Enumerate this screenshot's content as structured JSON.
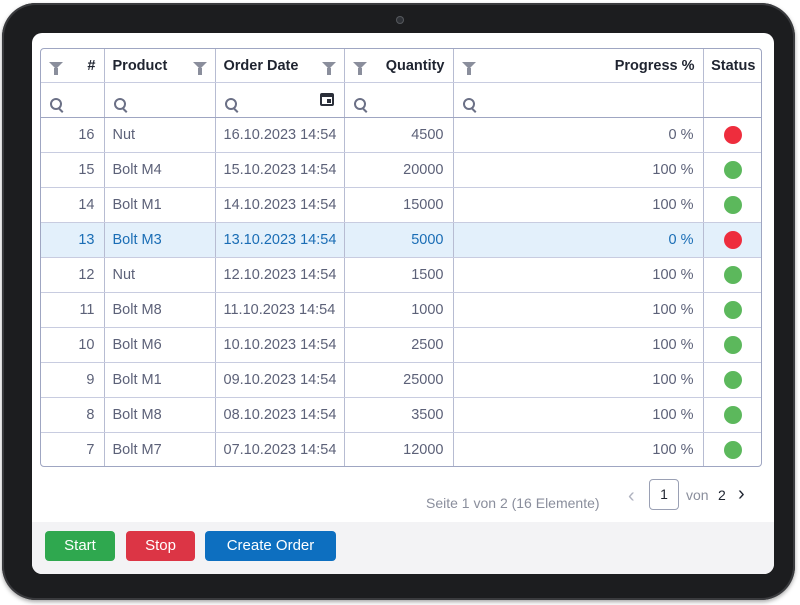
{
  "table": {
    "columns": [
      {
        "key": "id",
        "label": "#"
      },
      {
        "key": "product",
        "label": "Product"
      },
      {
        "key": "order_date",
        "label": "Order Date"
      },
      {
        "key": "quantity",
        "label": "Quantity"
      },
      {
        "key": "progress",
        "label": "Progress %"
      },
      {
        "key": "status",
        "label": "Status"
      }
    ],
    "rows": [
      {
        "id": "16",
        "product": "Nut",
        "order_date": "16.10.2023 14:54",
        "quantity": "4500",
        "progress": "0 %",
        "status": "red"
      },
      {
        "id": "15",
        "product": "Bolt M4",
        "order_date": "15.10.2023 14:54",
        "quantity": "20000",
        "progress": "100 %",
        "status": "green"
      },
      {
        "id": "14",
        "product": "Bolt M1",
        "order_date": "14.10.2023 14:54",
        "quantity": "15000",
        "progress": "100 %",
        "status": "green"
      },
      {
        "id": "13",
        "product": "Bolt M3",
        "order_date": "13.10.2023 14:54",
        "quantity": "5000",
        "progress": "0 %",
        "status": "red",
        "selected": true
      },
      {
        "id": "12",
        "product": "Nut",
        "order_date": "12.10.2023 14:54",
        "quantity": "1500",
        "progress": "100 %",
        "status": "green"
      },
      {
        "id": "11",
        "product": "Bolt M8",
        "order_date": "11.10.2023 14:54",
        "quantity": "1000",
        "progress": "100 %",
        "status": "green"
      },
      {
        "id": "10",
        "product": "Bolt M6",
        "order_date": "10.10.2023 14:54",
        "quantity": "2500",
        "progress": "100 %",
        "status": "green"
      },
      {
        "id": "9",
        "product": "Bolt M1",
        "order_date": "09.10.2023 14:54",
        "quantity": "25000",
        "progress": "100 %",
        "status": "green"
      },
      {
        "id": "8",
        "product": "Bolt M8",
        "order_date": "08.10.2023 14:54",
        "quantity": "3500",
        "progress": "100 %",
        "status": "green"
      },
      {
        "id": "7",
        "product": "Bolt M7",
        "order_date": "07.10.2023 14:54",
        "quantity": "12000",
        "progress": "100 %",
        "status": "green"
      }
    ]
  },
  "status_colors": {
    "green": "#5cb85c",
    "red": "#ee2d3d"
  },
  "icons": {
    "filter": "funnel-icon",
    "search": "search-icon",
    "calendar": "calendar-icon",
    "prev": "chevron-left-icon",
    "next": "chevron-right-icon"
  },
  "pager": {
    "info": "Seite 1 von 2 (16 Elemente)",
    "current_page": "1",
    "of_label": "von",
    "total_pages": "2"
  },
  "buttons": {
    "start": "Start",
    "stop": "Stop",
    "create_order": "Create Order"
  },
  "colors": {
    "start": "#2fa84f",
    "stop": "#dc3545",
    "create": "#0d6fc0",
    "selected_row": "#e3f0fb"
  }
}
